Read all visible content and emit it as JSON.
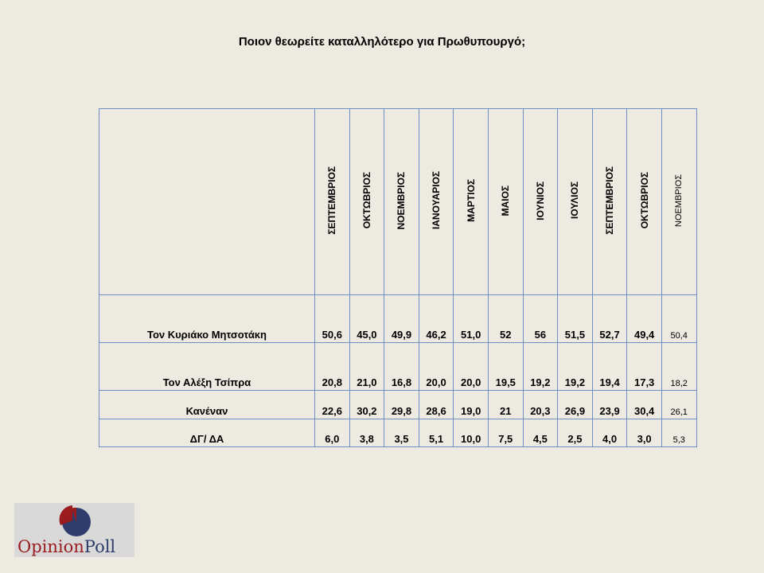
{
  "title": "Ποιον θεωρείτε καταλληλότερο για Πρωθυπουργό;",
  "table": {
    "columns": [
      "ΣΕΠΤΕΜΒΡΙΟΣ",
      "ΟΚΤΩΒΡΙΟΣ",
      "ΝΟΕΜΒΡΙΟΣ",
      "ΙΑΝΟΥΑΡΙΟΣ",
      "ΜΑΡΤΙΟΣ",
      "ΜΑΙΟΣ",
      "ΙΟΥΝΙΟΣ",
      "ΙΟΥΛΙΟΣ",
      "ΣΕΠΤΕΜΒΡΙΟΣ",
      "ΟΚΤΩΒΡΙΟΣ",
      "ΝΟΕΜΒΡΙΟΣ"
    ],
    "rows": [
      {
        "label": "Τον Κυριάκο Μητσοτάκη",
        "values": [
          "50,6",
          "45,0",
          "49,9",
          "46,2",
          "51,0",
          "52",
          "56",
          "51,5",
          "52,7",
          "49,4",
          "50,4"
        ]
      },
      {
        "label": "Τον Αλέξη Τσίπρα",
        "values": [
          "20,8",
          "21,0",
          "16,8",
          "20,0",
          "20,0",
          "19,5",
          "19,2",
          "19,2",
          "19,4",
          "17,3",
          "18,2"
        ]
      },
      {
        "label": "Κανέναν",
        "values": [
          "22,6",
          "30,2",
          "29,8",
          "28,6",
          "19,0",
          "21",
          "20,3",
          "26,9",
          "23,9",
          "30,4",
          "26,1"
        ]
      },
      {
        "label": "ΔΓ/ ΔΑ",
        "values": [
          "6,0",
          "3,8",
          "3,5",
          "5,1",
          "10,0",
          "7,5",
          "4,5",
          "2,5",
          "4,0",
          "3,0",
          "5,3"
        ]
      }
    ]
  },
  "logo": {
    "text_left": "Opinion",
    "text_right": "Poll",
    "colors": {
      "red": "#9B1C1F",
      "navy": "#2E3D6B"
    }
  }
}
